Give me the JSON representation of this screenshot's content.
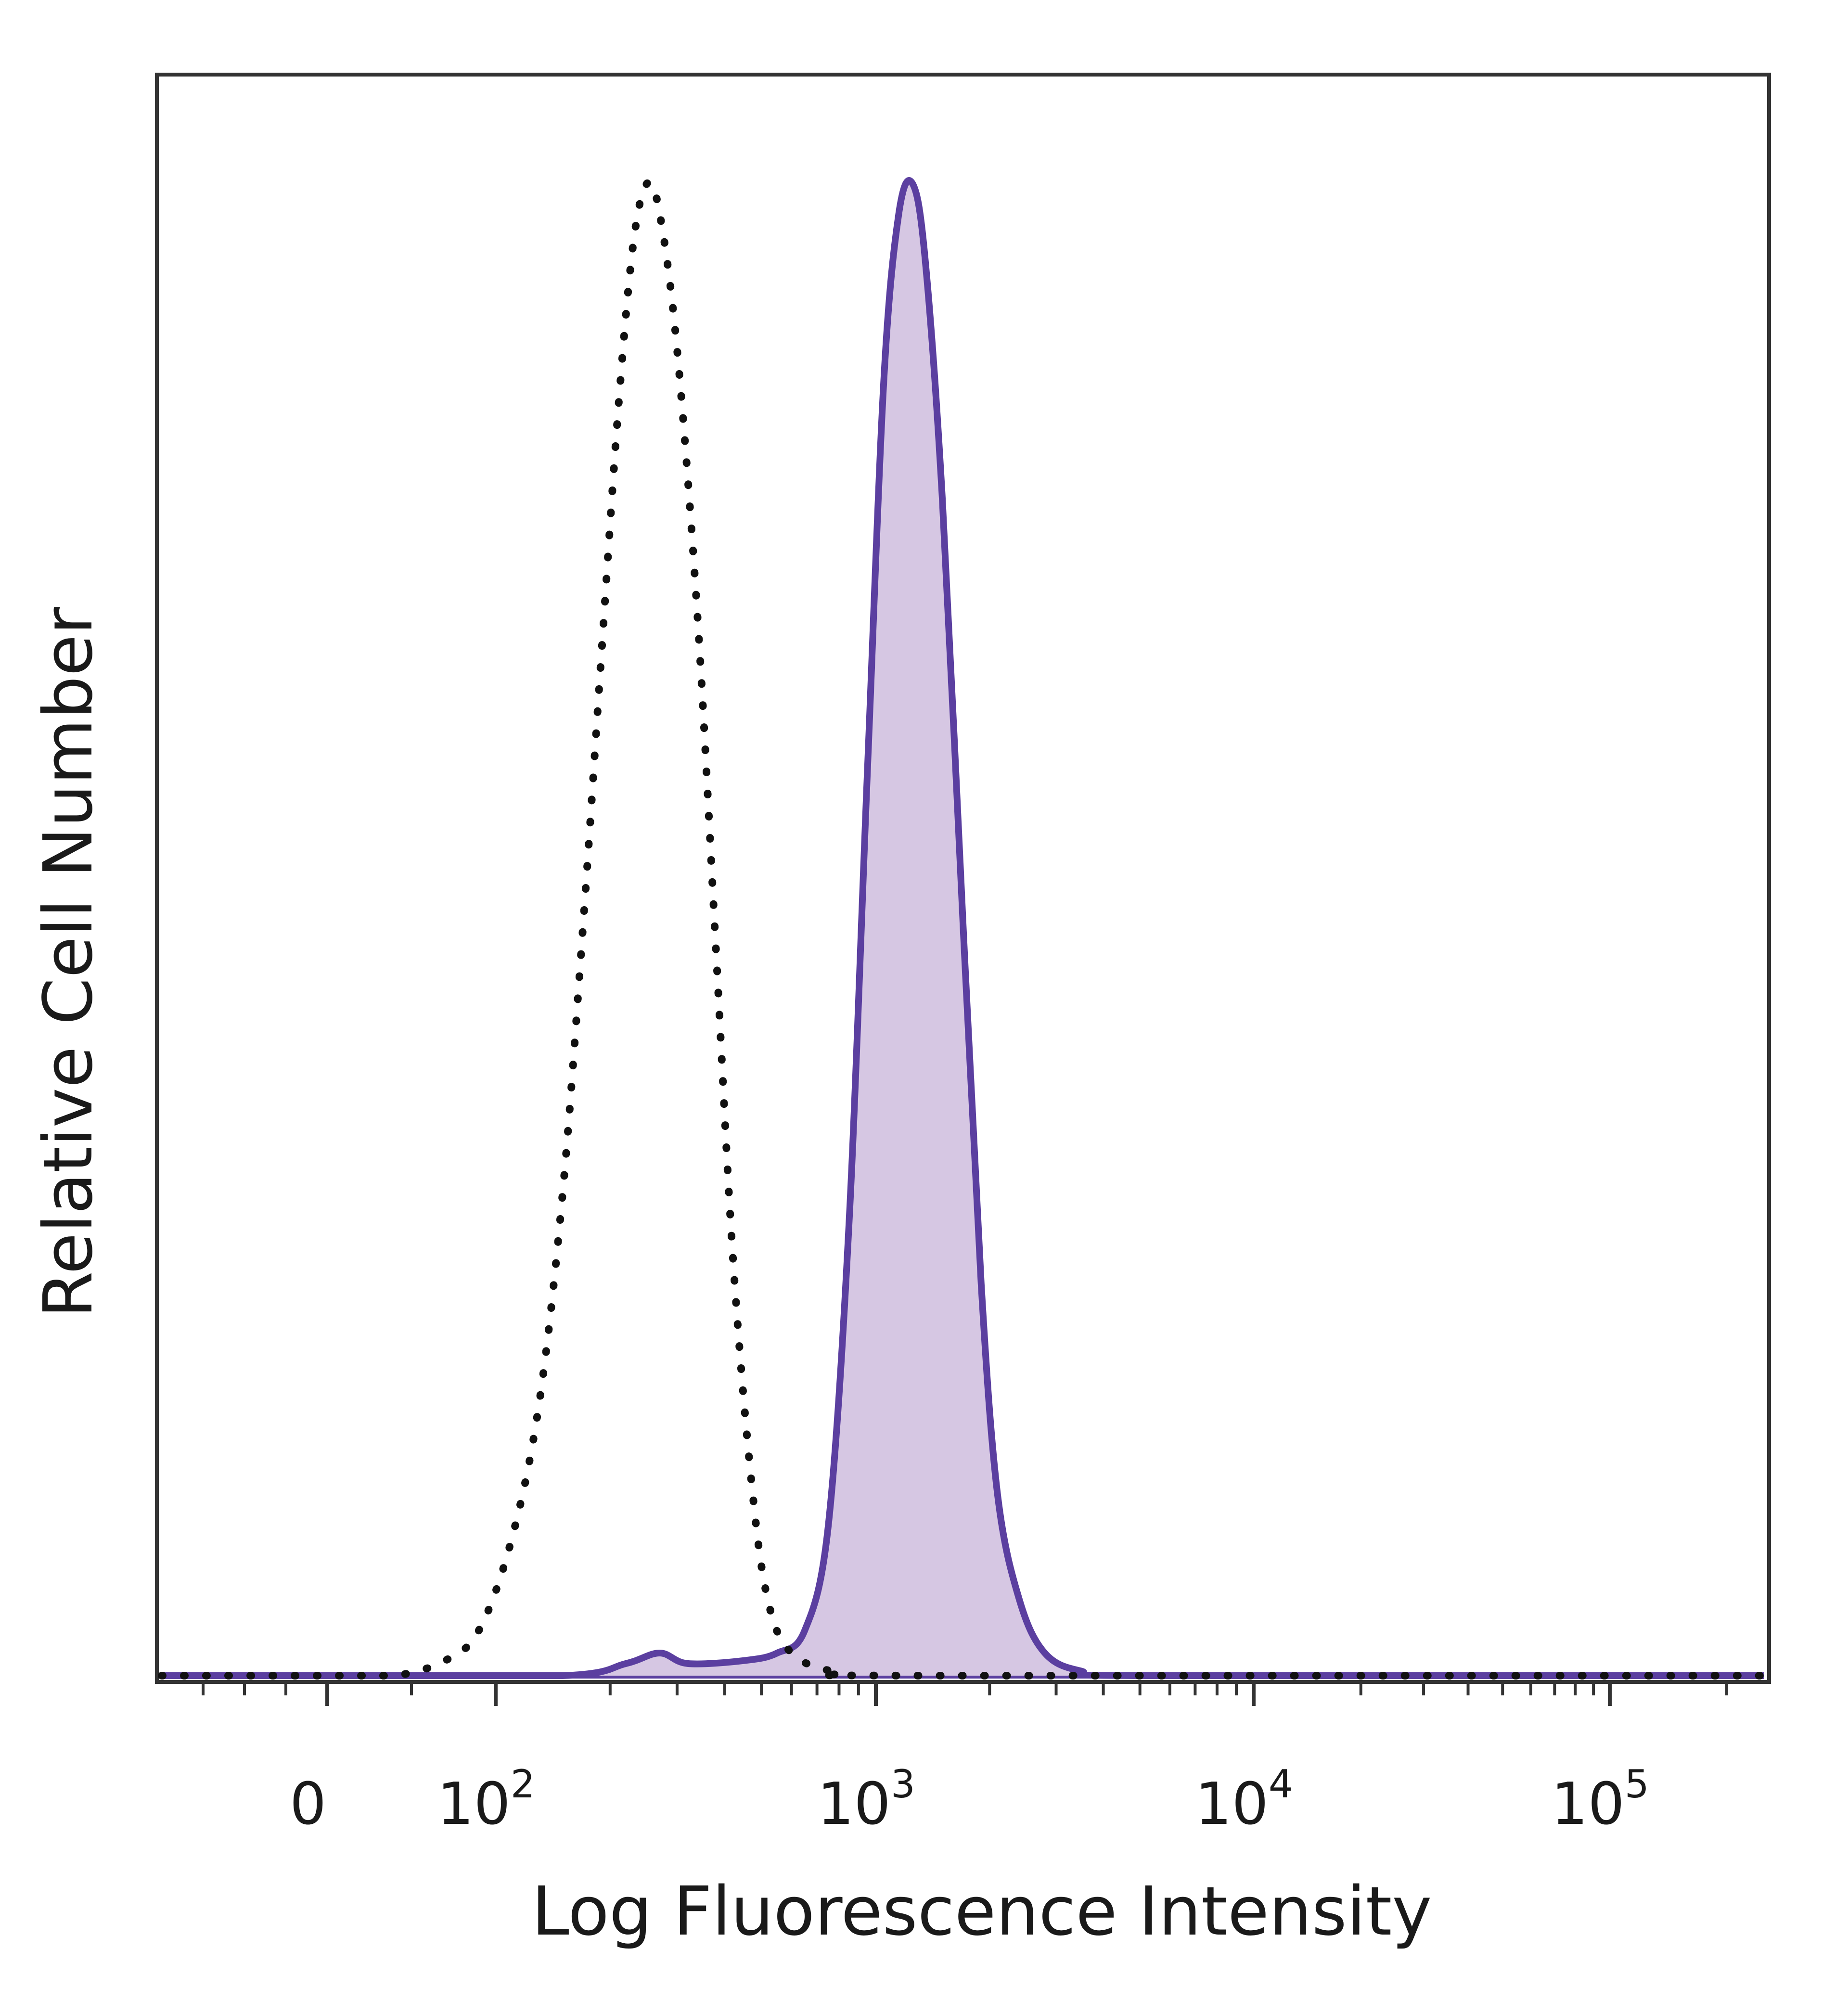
{
  "chart_data": {
    "type": "area",
    "title": "",
    "xlabel": "Log Fluorescence Intensity",
    "ylabel": "Relative Cell Number",
    "x_scale": "biexponential (log with linear zero region)",
    "xlim": [
      -200,
      250000
    ],
    "ylim": [
      0,
      1
    ],
    "grid": false,
    "legend": "none",
    "x_ticks": [
      {
        "value": 0,
        "base": "0",
        "exp": ""
      },
      {
        "value": 100,
        "base": "10",
        "exp": "2"
      },
      {
        "value": 1000,
        "base": "10",
        "exp": "3"
      },
      {
        "value": 10000,
        "base": "10",
        "exp": "4"
      },
      {
        "value": 100000,
        "base": "10",
        "exp": "5"
      }
    ],
    "series": [
      {
        "style": "dotted",
        "color": "#111111",
        "filled": false,
        "points": [
          [
            -200,
            0
          ],
          [
            0,
            0
          ],
          [
            40,
            0.0
          ],
          [
            70,
            0.01
          ],
          [
            90,
            0.03
          ],
          [
            110,
            0.09
          ],
          [
            130,
            0.18
          ],
          [
            150,
            0.32
          ],
          [
            170,
            0.5
          ],
          [
            190,
            0.68
          ],
          [
            210,
            0.84
          ],
          [
            230,
            0.95
          ],
          [
            250,
            0.99
          ],
          [
            270,
            0.97
          ],
          [
            300,
            0.88
          ],
          [
            340,
            0.7
          ],
          [
            380,
            0.48
          ],
          [
            420,
            0.28
          ],
          [
            470,
            0.13
          ],
          [
            520,
            0.05
          ],
          [
            600,
            0.015
          ],
          [
            800,
            0.002
          ],
          [
            1200,
            0.0
          ],
          [
            250000,
            0
          ]
        ]
      },
      {
        "style": "solid",
        "color": "#5b3fa0",
        "fill_color": "#d6c7e3",
        "filled": true,
        "points": [
          [
            -200,
            0
          ],
          [
            0,
            0
          ],
          [
            150,
            0.0
          ],
          [
            220,
            0.008
          ],
          [
            270,
            0.015
          ],
          [
            320,
            0.008
          ],
          [
            450,
            0.01
          ],
          [
            550,
            0.015
          ],
          [
            650,
            0.03
          ],
          [
            750,
            0.1
          ],
          [
            850,
            0.3
          ],
          [
            950,
            0.6
          ],
          [
            1050,
            0.86
          ],
          [
            1150,
            0.97
          ],
          [
            1250,
            0.99
          ],
          [
            1350,
            0.94
          ],
          [
            1500,
            0.78
          ],
          [
            1700,
            0.5
          ],
          [
            1900,
            0.26
          ],
          [
            2100,
            0.12
          ],
          [
            2400,
            0.05
          ],
          [
            2800,
            0.015
          ],
          [
            3500,
            0.003
          ],
          [
            5000,
            0.0
          ],
          [
            250000,
            0
          ]
        ]
      }
    ]
  }
}
